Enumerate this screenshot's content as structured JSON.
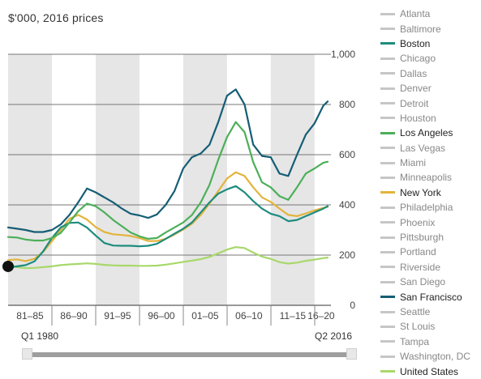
{
  "unit_label": "$'000, 2016 prices",
  "slider": {
    "start_label": "Q1 1980",
    "end_label": "Q2 2016"
  },
  "colors": {
    "shade": "#e6e6e6",
    "inactive": "#c6c6c6",
    "Boston": "#1e8c7e",
    "Los Angeles": "#4caf5a",
    "New York": "#e2b43c",
    "San Francisco": "#155e75",
    "United States": "#a8d86a"
  },
  "legend": [
    {
      "name": "Atlanta",
      "active": false
    },
    {
      "name": "Baltimore",
      "active": false
    },
    {
      "name": "Boston",
      "active": true
    },
    {
      "name": "Chicago",
      "active": false
    },
    {
      "name": "Dallas",
      "active": false
    },
    {
      "name": "Denver",
      "active": false
    },
    {
      "name": "Detroit",
      "active": false
    },
    {
      "name": "Houston",
      "active": false
    },
    {
      "name": "Los Angeles",
      "active": true
    },
    {
      "name": "Las Vegas",
      "active": false
    },
    {
      "name": "Miami",
      "active": false
    },
    {
      "name": "Minneapolis",
      "active": false
    },
    {
      "name": "New York",
      "active": true
    },
    {
      "name": "Philadelphia",
      "active": false
    },
    {
      "name": "Phoenix",
      "active": false
    },
    {
      "name": "Pittsburgh",
      "active": false
    },
    {
      "name": "Portland",
      "active": false
    },
    {
      "name": "Riverside",
      "active": false
    },
    {
      "name": "San Diego",
      "active": false
    },
    {
      "name": "San Francisco",
      "active": true
    },
    {
      "name": "Seattle",
      "active": false
    },
    {
      "name": "St Louis",
      "active": false
    },
    {
      "name": "Tampa",
      "active": false
    },
    {
      "name": "Washington, DC",
      "active": false
    },
    {
      "name": "United States",
      "active": true
    }
  ],
  "chart_data": {
    "type": "line",
    "ylim": [
      0,
      1000
    ],
    "yticks": [
      {
        "value": 0,
        "label": "0"
      },
      {
        "value": 200,
        "label": "200"
      },
      {
        "value": 400,
        "label": "400"
      },
      {
        "value": 600,
        "label": "600"
      },
      {
        "value": 800,
        "label": "800"
      },
      {
        "value": 1000,
        "label": "1,000"
      }
    ],
    "xlim": [
      1980.0,
      2016.5
    ],
    "periods": [
      {
        "label": "81–85",
        "start": 1980,
        "end": 1985,
        "shaded": true
      },
      {
        "label": "86–90",
        "start": 1985,
        "end": 1990,
        "shaded": false
      },
      {
        "label": "91–95",
        "start": 1990,
        "end": 1995,
        "shaded": true
      },
      {
        "label": "96–00",
        "start": 1995,
        "end": 2000,
        "shaded": false
      },
      {
        "label": "01–05",
        "start": 2000,
        "end": 2005,
        "shaded": true
      },
      {
        "label": "06–10",
        "start": 2005,
        "end": 2010,
        "shaded": false
      },
      {
        "label": "11–15",
        "start": 2010,
        "end": 2015,
        "shaded": true
      },
      {
        "label": "16–20",
        "start": 2015,
        "end": 2016.5,
        "shaded": false
      }
    ],
    "marker": {
      "x": 1980.0,
      "y": 155
    },
    "series": [
      {
        "name": "United States",
        "points": [
          [
            1980,
            165
          ],
          [
            1981,
            152
          ],
          [
            1982,
            148
          ],
          [
            1983,
            149
          ],
          [
            1984,
            152
          ],
          [
            1985,
            155
          ],
          [
            1986,
            160
          ],
          [
            1987,
            163
          ],
          [
            1988,
            165
          ],
          [
            1989,
            167
          ],
          [
            1990,
            165
          ],
          [
            1991,
            161
          ],
          [
            1992,
            159
          ],
          [
            1993,
            158
          ],
          [
            1994,
            158
          ],
          [
            1995,
            157
          ],
          [
            1996,
            157
          ],
          [
            1997,
            158
          ],
          [
            1998,
            162
          ],
          [
            1999,
            167
          ],
          [
            2000,
            173
          ],
          [
            2001,
            178
          ],
          [
            2002,
            184
          ],
          [
            2003,
            193
          ],
          [
            2004,
            207
          ],
          [
            2005,
            222
          ],
          [
            2006,
            232
          ],
          [
            2007,
            228
          ],
          [
            2008,
            210
          ],
          [
            2009,
            194
          ],
          [
            2010,
            185
          ],
          [
            2011,
            172
          ],
          [
            2012,
            166
          ],
          [
            2013,
            170
          ],
          [
            2014,
            177
          ],
          [
            2015,
            182
          ],
          [
            2016,
            188
          ],
          [
            2016.5,
            190
          ]
        ]
      },
      {
        "name": "New York",
        "points": [
          [
            1980,
            180
          ],
          [
            1981,
            183
          ],
          [
            1982,
            176
          ],
          [
            1983,
            185
          ],
          [
            1984,
            213
          ],
          [
            1985,
            255
          ],
          [
            1986,
            300
          ],
          [
            1987,
            345
          ],
          [
            1988,
            360
          ],
          [
            1989,
            342
          ],
          [
            1990,
            312
          ],
          [
            1991,
            292
          ],
          [
            1992,
            283
          ],
          [
            1993,
            280
          ],
          [
            1994,
            276
          ],
          [
            1995,
            268
          ],
          [
            1996,
            256
          ],
          [
            1997,
            256
          ],
          [
            1998,
            265
          ],
          [
            1999,
            282
          ],
          [
            2000,
            302
          ],
          [
            2001,
            325
          ],
          [
            2002,
            360
          ],
          [
            2003,
            405
          ],
          [
            2004,
            455
          ],
          [
            2005,
            505
          ],
          [
            2006,
            530
          ],
          [
            2007,
            515
          ],
          [
            2008,
            470
          ],
          [
            2009,
            430
          ],
          [
            2010,
            412
          ],
          [
            2011,
            385
          ],
          [
            2012,
            360
          ],
          [
            2013,
            355
          ],
          [
            2014,
            366
          ],
          [
            2015,
            378
          ],
          [
            2016,
            388
          ],
          [
            2016.5,
            392
          ]
        ]
      },
      {
        "name": "Boston",
        "points": [
          [
            1980,
            150
          ],
          [
            1981,
            155
          ],
          [
            1982,
            160
          ],
          [
            1983,
            175
          ],
          [
            1984,
            215
          ],
          [
            1985,
            268
          ],
          [
            1986,
            310
          ],
          [
            1987,
            328
          ],
          [
            1988,
            330
          ],
          [
            1989,
            310
          ],
          [
            1990,
            278
          ],
          [
            1991,
            248
          ],
          [
            1992,
            238
          ],
          [
            1993,
            237
          ],
          [
            1994,
            237
          ],
          [
            1995,
            235
          ],
          [
            1996,
            237
          ],
          [
            1997,
            245
          ],
          [
            1998,
            265
          ],
          [
            1999,
            285
          ],
          [
            2000,
            305
          ],
          [
            2001,
            330
          ],
          [
            2002,
            370
          ],
          [
            2003,
            410
          ],
          [
            2004,
            445
          ],
          [
            2005,
            462
          ],
          [
            2006,
            475
          ],
          [
            2007,
            450
          ],
          [
            2008,
            415
          ],
          [
            2009,
            385
          ],
          [
            2010,
            365
          ],
          [
            2011,
            355
          ],
          [
            2012,
            335
          ],
          [
            2013,
            340
          ],
          [
            2014,
            355
          ],
          [
            2015,
            370
          ],
          [
            2016,
            385
          ],
          [
            2016.5,
            395
          ]
        ]
      },
      {
        "name": "Los Angeles",
        "points": [
          [
            1980,
            272
          ],
          [
            1981,
            270
          ],
          [
            1982,
            262
          ],
          [
            1983,
            258
          ],
          [
            1984,
            258
          ],
          [
            1985,
            268
          ],
          [
            1986,
            288
          ],
          [
            1987,
            330
          ],
          [
            1988,
            375
          ],
          [
            1989,
            405
          ],
          [
            1990,
            395
          ],
          [
            1991,
            370
          ],
          [
            1992,
            340
          ],
          [
            1993,
            315
          ],
          [
            1994,
            290
          ],
          [
            1995,
            275
          ],
          [
            1996,
            265
          ],
          [
            1997,
            268
          ],
          [
            1998,
            290
          ],
          [
            1999,
            310
          ],
          [
            2000,
            330
          ],
          [
            2001,
            360
          ],
          [
            2002,
            410
          ],
          [
            2003,
            480
          ],
          [
            2004,
            580
          ],
          [
            2005,
            670
          ],
          [
            2006,
            730
          ],
          [
            2007,
            690
          ],
          [
            2008,
            570
          ],
          [
            2009,
            490
          ],
          [
            2010,
            470
          ],
          [
            2011,
            435
          ],
          [
            2012,
            420
          ],
          [
            2013,
            470
          ],
          [
            2014,
            525
          ],
          [
            2015,
            545
          ],
          [
            2016,
            568
          ],
          [
            2016.5,
            572
          ]
        ]
      },
      {
        "name": "San Francisco",
        "points": [
          [
            1980,
            310
          ],
          [
            1981,
            305
          ],
          [
            1982,
            300
          ],
          [
            1983,
            292
          ],
          [
            1984,
            292
          ],
          [
            1985,
            300
          ],
          [
            1986,
            322
          ],
          [
            1987,
            360
          ],
          [
            1988,
            410
          ],
          [
            1989,
            465
          ],
          [
            1990,
            450
          ],
          [
            1991,
            430
          ],
          [
            1992,
            410
          ],
          [
            1993,
            385
          ],
          [
            1994,
            365
          ],
          [
            1995,
            358
          ],
          [
            1996,
            348
          ],
          [
            1997,
            362
          ],
          [
            1998,
            400
          ],
          [
            1999,
            455
          ],
          [
            2000,
            545
          ],
          [
            2001,
            590
          ],
          [
            2002,
            605
          ],
          [
            2003,
            640
          ],
          [
            2004,
            730
          ],
          [
            2005,
            835
          ],
          [
            2006,
            860
          ],
          [
            2007,
            800
          ],
          [
            2008,
            640
          ],
          [
            2009,
            595
          ],
          [
            2010,
            590
          ],
          [
            2011,
            525
          ],
          [
            2012,
            515
          ],
          [
            2013,
            600
          ],
          [
            2014,
            680
          ],
          [
            2015,
            725
          ],
          [
            2016,
            795
          ],
          [
            2016.5,
            812
          ]
        ]
      }
    ]
  }
}
